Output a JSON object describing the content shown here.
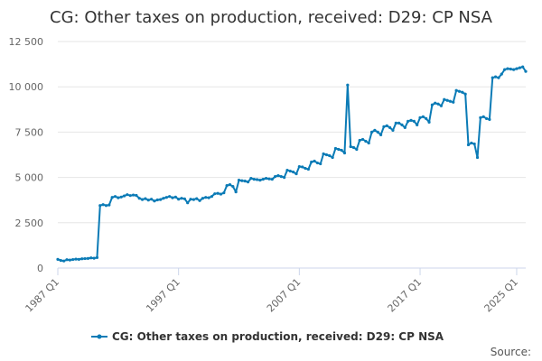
{
  "chart_data": {
    "type": "line",
    "title": "CG: Other taxes on production, received: D29: CP NSA",
    "xlabel": "",
    "ylabel": "",
    "ylim": [
      0,
      12500
    ],
    "yticks": [
      0,
      2500,
      5000,
      7500,
      10000,
      12500
    ],
    "ytick_labels": [
      "0",
      "2 500",
      "5 000",
      "7 500",
      "10 000",
      "12 500"
    ],
    "xtick_labels": [
      "1987 Q1",
      "1997 Q1",
      "2007 Q1",
      "2017 Q1",
      "2025 Q1"
    ],
    "xtick_index": [
      0,
      40,
      80,
      120,
      152
    ],
    "grid": true,
    "legend": "bottom-center",
    "series": [
      {
        "name": "CG: Other taxes on production, received: D29: CP NSA",
        "color": "#0b7bb6",
        "start": "1987 Q1",
        "end": "2025 Q1",
        "values": [
          480,
          420,
          390,
          460,
          440,
          470,
          490,
          480,
          510,
          520,
          530,
          560,
          540,
          580,
          3450,
          3500,
          3450,
          3480,
          3900,
          3950,
          3880,
          3920,
          3980,
          4050,
          4000,
          4030,
          4010,
          3850,
          3780,
          3830,
          3750,
          3800,
          3700,
          3760,
          3780,
          3850,
          3900,
          3950,
          3880,
          3920,
          3800,
          3850,
          3820,
          3600,
          3800,
          3780,
          3830,
          3720,
          3850,
          3900,
          3880,
          3950,
          4100,
          4120,
          4080,
          4150,
          4550,
          4600,
          4500,
          4200,
          4850,
          4820,
          4800,
          4750,
          4950,
          4900,
          4880,
          4850,
          4900,
          4950,
          4920,
          4900,
          5050,
          5100,
          5050,
          5000,
          5400,
          5350,
          5300,
          5200,
          5600,
          5580,
          5500,
          5450,
          5850,
          5900,
          5800,
          5750,
          6300,
          6250,
          6200,
          6100,
          6600,
          6550,
          6500,
          6350,
          10100,
          6700,
          6650,
          6550,
          7050,
          7100,
          7000,
          6900,
          7500,
          7600,
          7500,
          7350,
          7800,
          7850,
          7750,
          7600,
          8000,
          8000,
          7900,
          7750,
          8100,
          8150,
          8100,
          7900,
          8300,
          8350,
          8250,
          8050,
          9000,
          9100,
          9050,
          8950,
          9300,
          9250,
          9200,
          9150,
          9800,
          9750,
          9700,
          9600,
          6800,
          6900,
          6850,
          6100,
          8300,
          8350,
          8250,
          8200,
          10500,
          10550,
          10500,
          10700,
          10950,
          11000,
          10980,
          10950,
          11000,
          11050,
          11100,
          10850
        ]
      }
    ]
  },
  "legend": {
    "label": "CG: Other taxes on production, received: D29: CP NSA"
  },
  "footer": {
    "source_label": "Source:"
  },
  "colors": {
    "series": "#0b7bb6",
    "grid": "#e6e6e6",
    "axis": "#ccd6eb"
  }
}
